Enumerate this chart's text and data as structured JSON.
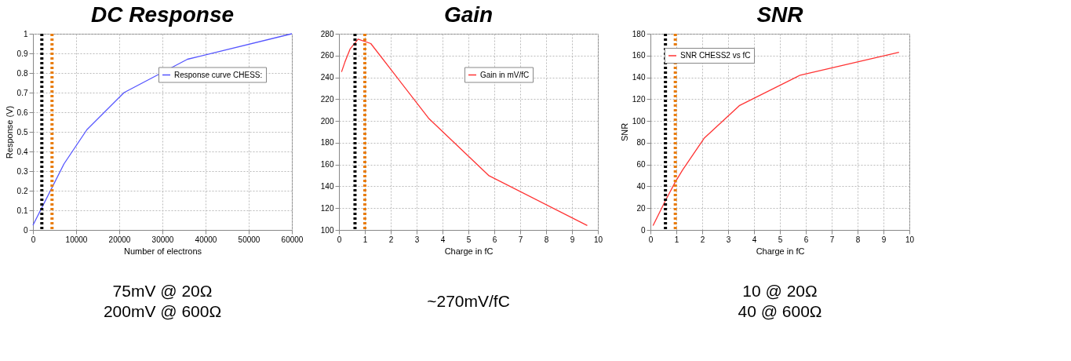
{
  "chart_data": [
    {
      "type": "line",
      "title": "DC Response",
      "xlabel": "Number of electrons",
      "ylabel": "Response (V)",
      "xlim": [
        0,
        60000
      ],
      "xticks": [
        0,
        10000,
        20000,
        30000,
        40000,
        50000,
        60000
      ],
      "ylim": [
        0,
        1
      ],
      "yticks": [
        0,
        0.1,
        0.2,
        0.3,
        0.4,
        0.5,
        0.6,
        0.7,
        0.8,
        0.9,
        1
      ],
      "grid": true,
      "legend": "top right",
      "marker": "none",
      "line_style": "solid",
      "series": [
        {
          "name": "Response curve CHESS:",
          "color": "#5555ff",
          "x": [
            0,
            7200,
            12500,
            21100,
            35800,
            60000
          ],
          "values": [
            0.024,
            0.337,
            0.511,
            0.7,
            0.87,
            1.0
          ]
        }
      ],
      "ref_lines": [
        {
          "axis": "x",
          "value": 2060,
          "color": "#000000",
          "line_style": "dotted"
        },
        {
          "axis": "x",
          "value": 4420,
          "color": "#e87c0c",
          "line_style": "dotted"
        }
      ],
      "annotations": [
        "75mV   @   20Ω",
        "200mV @ 600Ω"
      ]
    },
    {
      "type": "line",
      "title": "Gain",
      "xlabel": "Charge in fC",
      "xlim": [
        0,
        10
      ],
      "xticks": [
        0,
        1,
        2,
        3,
        4,
        5,
        6,
        7,
        8,
        9,
        10
      ],
      "ylim": [
        100,
        280
      ],
      "yticks": [
        100,
        120,
        140,
        160,
        180,
        200,
        220,
        240,
        260,
        280
      ],
      "grid": true,
      "legend": "top right",
      "marker": "none",
      "line_style": "solid",
      "series": [
        {
          "name": "Gain in mV/fC",
          "color": "#ff3333",
          "x": [
            0.1,
            0.23,
            0.43,
            0.74,
            1.23,
            3.48,
            5.78,
            9.59
          ],
          "values": [
            245,
            254,
            266,
            275,
            271,
            202,
            150,
            104
          ]
        }
      ],
      "ref_lines": [
        {
          "axis": "x",
          "value": 0.62,
          "color": "#000000",
          "line_style": "dotted"
        },
        {
          "axis": "x",
          "value": 1.0,
          "color": "#e87c0c",
          "line_style": "dotted"
        }
      ],
      "annotations": [
        "~270mV/fC"
      ]
    },
    {
      "type": "line",
      "title": "SNR",
      "xlabel": "Charge in fC",
      "ylabel": "SNR",
      "xlim": [
        0,
        10
      ],
      "xticks": [
        0,
        1,
        2,
        3,
        4,
        5,
        6,
        7,
        8,
        9,
        10
      ],
      "ylim": [
        0,
        180
      ],
      "yticks": [
        0,
        20,
        40,
        60,
        80,
        100,
        120,
        140,
        160,
        180
      ],
      "grid": true,
      "legend": "top left",
      "marker": "none",
      "line_style": "solid",
      "series": [
        {
          "name": "SNR CHESS2 vs fC",
          "color": "#ff3333",
          "x": [
            0.1,
            0.58,
            0.96,
            1.24,
            2.07,
            3.43,
            5.78,
            9.6
          ],
          "values": [
            4,
            27,
            44,
            55,
            84,
            114,
            142,
            163
          ]
        }
      ],
      "ref_lines": [
        {
          "axis": "x",
          "value": 0.58,
          "color": "#000000",
          "line_style": "dotted"
        },
        {
          "axis": "x",
          "value": 0.96,
          "color": "#e87c0c",
          "line_style": "dotted"
        }
      ],
      "annotations": [
        "10     @   20Ω",
        "40     @ 600Ω"
      ]
    }
  ]
}
